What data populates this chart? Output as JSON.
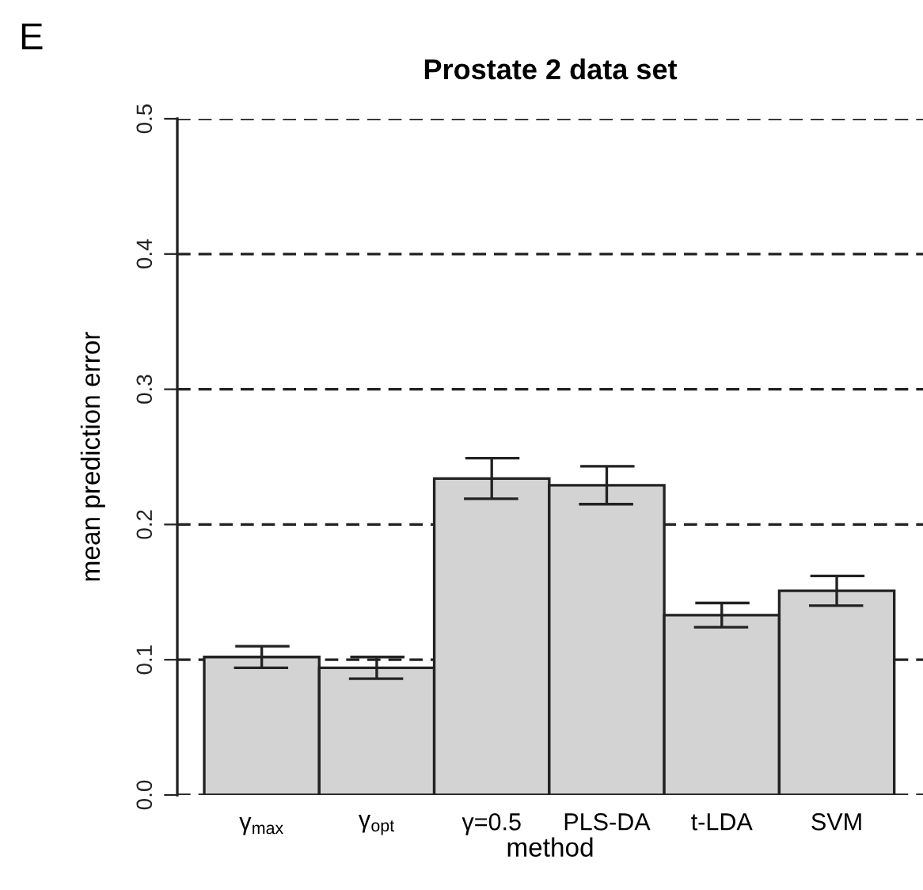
{
  "chart_data": {
    "type": "bar",
    "title": "Prostate 2 data set",
    "xlabel": "method",
    "ylabel": "mean prediction error",
    "categories": [
      "γ$_{max}$",
      "γ$_{opt}$",
      "γ=0.5",
      "PLS-DA",
      "t-LDA",
      "SVM"
    ],
    "values": [
      0.102,
      0.094,
      0.234,
      0.229,
      0.133,
      0.151
    ],
    "errors": [
      0.008,
      0.008,
      0.015,
      0.014,
      0.009,
      0.011
    ],
    "color": "#d3d3d3",
    "ylim": [
      0,
      0.5
    ],
    "yticks": [
      {
        "value": 0,
        "label": "0.0"
      },
      0.1,
      0.2,
      0.3,
      0.4,
      0.5
    ],
    "grid": "y",
    "annotations": [
      "E"
    ]
  }
}
